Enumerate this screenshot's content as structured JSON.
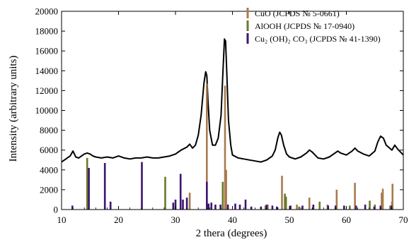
{
  "chart_data": {
    "type": "line",
    "xlabel": "2 thera (degrees)",
    "ylabel": "Intensity (arbitrary units)",
    "xlim": [
      10,
      70
    ],
    "ylim": [
      0,
      20000
    ],
    "xticks": [
      "10",
      "20",
      "30",
      "40",
      "50",
      "60",
      "70"
    ],
    "yticks": [
      "0",
      "2000",
      "4000",
      "6000",
      "8000",
      "10000",
      "12000",
      "14000",
      "16000",
      "18000",
      "20000"
    ],
    "grid": false,
    "legend_position": "top-right",
    "pattern_line": {
      "color": "#000000",
      "x": [
        10,
        10.5,
        11,
        11.5,
        12,
        12.5,
        13,
        13.5,
        14,
        14.5,
        15,
        15.5,
        16,
        17,
        18,
        19,
        20,
        21,
        22,
        23,
        24,
        25,
        26,
        27,
        28,
        29,
        30,
        31,
        32,
        32.5,
        33,
        33.5,
        34,
        34.5,
        35,
        35.3,
        35.5,
        35.7,
        36,
        36.5,
        37,
        37.5,
        38,
        38.3,
        38.6,
        38.8,
        39,
        39.3,
        39.7,
        40,
        41,
        42,
        43,
        44,
        45,
        46,
        47,
        47.5,
        48,
        48.3,
        48.6,
        49,
        49.5,
        50,
        51,
        52,
        53,
        53.5,
        54,
        54.5,
        55,
        56,
        57,
        58,
        58.5,
        59,
        60,
        61,
        61.5,
        62,
        63,
        64,
        65,
        65.5,
        66,
        66.5,
        67,
        68,
        68.5,
        69,
        70
      ],
      "y": [
        4800,
        5000,
        5200,
        5400,
        5900,
        5300,
        5200,
        5400,
        5600,
        5700,
        5600,
        5400,
        5300,
        5200,
        5300,
        5200,
        5400,
        5200,
        5100,
        5200,
        5200,
        5300,
        5200,
        5200,
        5300,
        5400,
        5600,
        6000,
        6300,
        6600,
        6200,
        6500,
        7500,
        9500,
        12800,
        13900,
        13500,
        11000,
        8000,
        6500,
        6500,
        7200,
        9500,
        13500,
        17200,
        17000,
        14000,
        9000,
        6500,
        5500,
        5200,
        5100,
        5000,
        4900,
        4800,
        5000,
        5400,
        6000,
        7300,
        7800,
        7500,
        6500,
        5600,
        5300,
        5100,
        5300,
        5700,
        6000,
        5800,
        5500,
        5200,
        5100,
        5300,
        5700,
        5900,
        5700,
        5500,
        5900,
        6200,
        5900,
        5600,
        5400,
        5900,
        6800,
        7400,
        7200,
        6500,
        6000,
        6500,
        6100,
        5500
      ]
    },
    "series": [
      {
        "name": "CuO (JCPDS № 5-0661)",
        "color": "#a97a4e",
        "x": [
          32.5,
          35.5,
          38.7,
          38.9,
          46.2,
          48.7,
          51.3,
          53.5,
          56.7,
          58.3,
          61.5,
          66.2,
          66.4,
          68.0,
          68.1
        ],
        "y": [
          1700,
          12700,
          12500,
          4000,
          500,
          3400,
          500,
          1200,
          500,
          2000,
          2700,
          1700,
          2100,
          800,
          2600
        ]
      },
      {
        "name": "AlOOH (JCPDS № 17-0940)",
        "color": "#6b7a2c",
        "x": [
          14.5,
          28.2,
          38.3,
          45.8,
          49.2,
          49.4,
          51.7,
          55.3,
          60.6,
          64.1,
          65.0,
          67.7
        ],
        "y": [
          5200,
          3300,
          2800,
          400,
          1600,
          1300,
          300,
          800,
          400,
          900,
          500,
          400
        ]
      },
      {
        "name": "Cu₂ (OH)₂ CO₃ (JCPDS № 41-1390)",
        "color": "#3c1670",
        "x": [
          11.9,
          14.8,
          17.6,
          18.6,
          24.1,
          29.6,
          30.0,
          30.9,
          31.3,
          32.0,
          35.5,
          35.8,
          36.3,
          37.0,
          37.9,
          39.2,
          40.5,
          41.3,
          42.3,
          43.3,
          45.0,
          46.0,
          47.0,
          47.8,
          50.2,
          52.3,
          54.2,
          56.8,
          58.1,
          59.6,
          61.7,
          63.3,
          64.9,
          66.0,
          67.9
        ],
        "y": [
          400,
          4200,
          4700,
          800,
          4800,
          700,
          1000,
          3600,
          1000,
          1200,
          2800,
          600,
          700,
          500,
          500,
          500,
          600,
          500,
          1000,
          300,
          300,
          500,
          400,
          300,
          400,
          400,
          500,
          400,
          400,
          400,
          400,
          500,
          300,
          400,
          400
        ]
      }
    ]
  }
}
